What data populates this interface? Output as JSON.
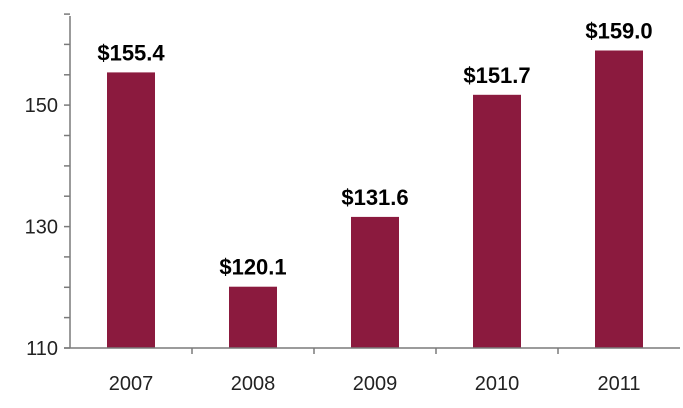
{
  "chart_data": {
    "type": "bar",
    "categories": [
      "2007",
      "2008",
      "2009",
      "2010",
      "2011"
    ],
    "values": [
      155.4,
      120.1,
      131.6,
      151.7,
      159.0
    ],
    "data_labels": [
      "$155.4",
      "$120.1",
      "$131.6",
      "$151.7",
      "$159.0"
    ],
    "title": "",
    "xlabel": "",
    "ylabel": "",
    "ylim": [
      110,
      166
    ],
    "y_ticks": [
      110,
      130,
      150
    ],
    "y_tick_labels": [
      "110",
      "130",
      "150"
    ],
    "grid": false,
    "bar_color": "#8b1a3e"
  }
}
